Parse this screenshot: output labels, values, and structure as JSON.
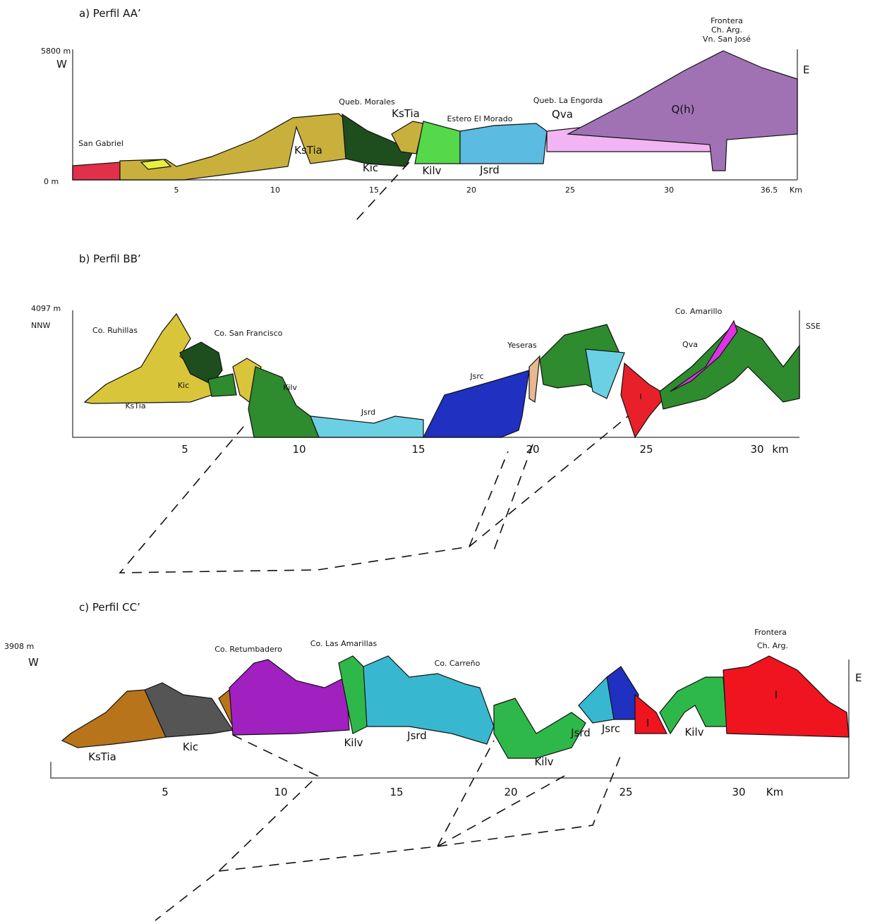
{
  "panels": [
    {
      "title": "a) Perfil AA’",
      "top_elevation": "5800 m",
      "base_elevation": "0 m",
      "left_direction": "W",
      "right_direction": "E",
      "x_ticks": [
        "5",
        "10",
        "15",
        "20",
        "25",
        "30",
        "36.5"
      ],
      "x_unit": "Km",
      "labels": [
        "Frontera",
        "Ch. Arg.",
        "Vn. San José",
        "Queb. Morales",
        "KsTia",
        "Estero El Morado",
        "Queb. La Engorda",
        "Qva",
        "Q(h)",
        "San Gabriel",
        "KsTia",
        "Kic",
        "Kilv",
        "Jsrd"
      ]
    },
    {
      "title": "b) Perfil BB’",
      "top_elevation": "4097 m",
      "left_direction": "NNW",
      "right_direction": "SSE",
      "x_ticks": [
        "5",
        "10",
        "15",
        "20",
        "25",
        "30"
      ],
      "x_unit": "km",
      "labels": [
        "Co. Ruhillas",
        "Co. San Francisco",
        "Kic",
        "KsTia",
        "Kilv",
        "Jsrd",
        "Jsrc",
        "Yeseras",
        "I",
        "Co. Amarillo",
        "Qva"
      ]
    },
    {
      "title": "c) Perfil CC’",
      "top_elevation": "3908 m",
      "left_direction": "W",
      "right_direction": "E",
      "x_ticks": [
        "5",
        "10",
        "15",
        "20",
        "25",
        "30"
      ],
      "x_unit": "Km",
      "labels": [
        "Co. Retumbadero",
        "Co. Las Amarillas",
        "Co. Carreño",
        "Frontera",
        "Ch. Arg.",
        "KsTia",
        "Kic",
        "Kilv",
        "Jsrd",
        "Kilv",
        "Jsrd",
        "Jsrc",
        "Kilv",
        "I",
        "I"
      ]
    }
  ]
}
